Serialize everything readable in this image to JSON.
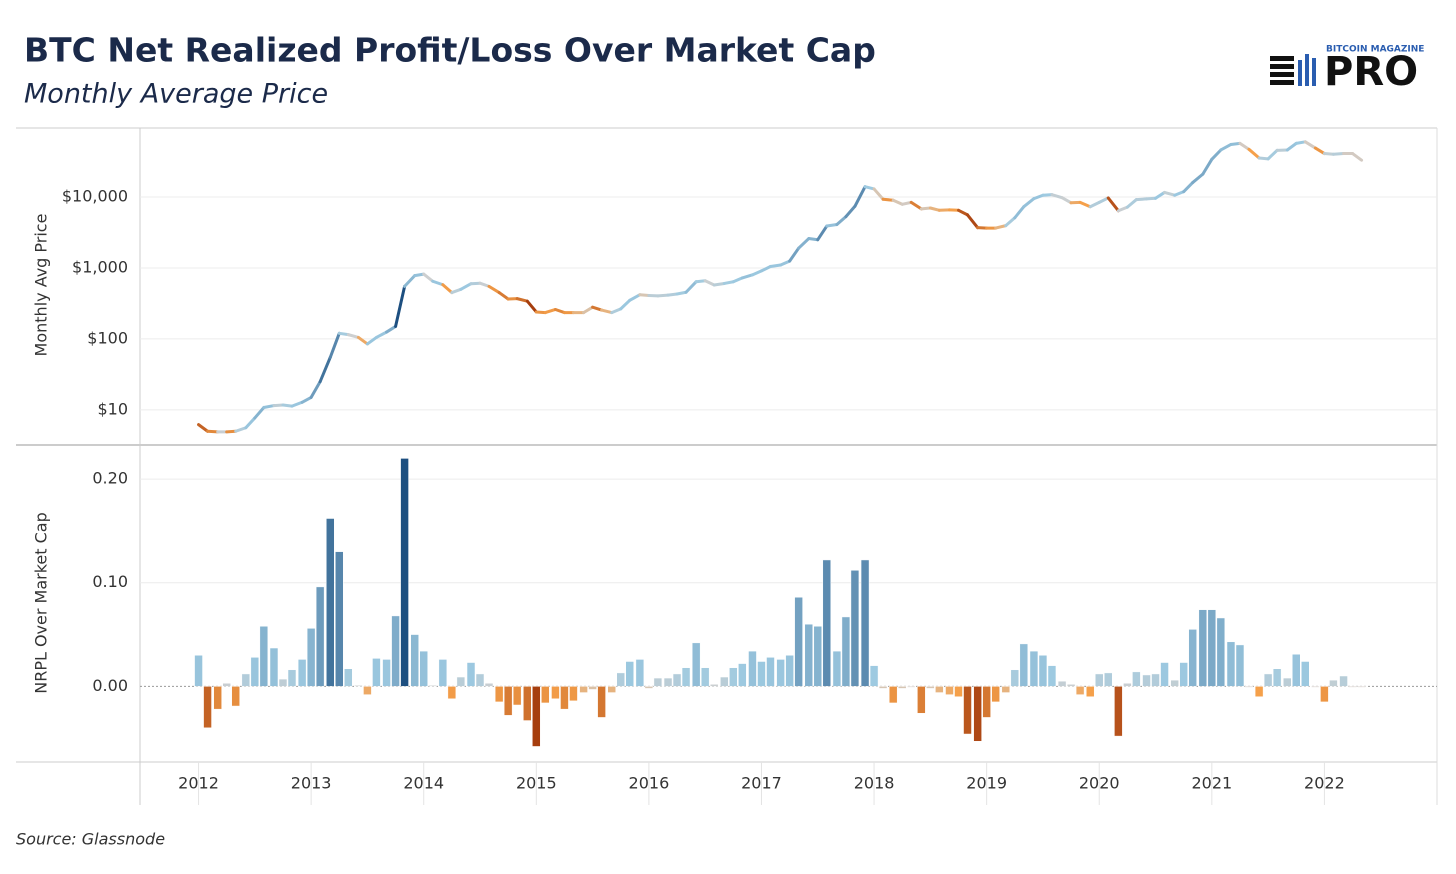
{
  "header": {
    "title": "BTC Net Realized Profit/Loss Over Market Cap",
    "subtitle": "Monthly Average Price",
    "logo_top": "BITCOIN MAGAZINE",
    "logo_main": "PRO"
  },
  "source": "Source: Glassnode",
  "chart_data": [
    {
      "type": "line",
      "y_label": "Monthly Avg Price",
      "log": true,
      "grid": true,
      "xlim": [
        2011.48,
        2023.0
      ],
      "xticks": [
        2012,
        2013,
        2014,
        2015,
        2016,
        2017,
        2018,
        2019,
        2020,
        2021,
        2022
      ],
      "ylim": [
        3.2,
        88000
      ],
      "yticks": [
        {
          "value": 10,
          "label": "$10"
        },
        {
          "value": 100,
          "label": "$100"
        },
        {
          "value": 1000,
          "label": "$1,000"
        },
        {
          "value": 10000,
          "label": "$10,000"
        }
      ],
      "x": [
        2012,
        2012.08,
        2012.17,
        2012.25,
        2012.33,
        2012.42,
        2012.5,
        2012.58,
        2012.67,
        2012.75,
        2012.83,
        2012.92,
        2013,
        2013.08,
        2013.17,
        2013.25,
        2013.33,
        2013.42,
        2013.5,
        2013.58,
        2013.67,
        2013.75,
        2013.83,
        2013.92,
        2014,
        2014.08,
        2014.17,
        2014.25,
        2014.33,
        2014.42,
        2014.5,
        2014.58,
        2014.67,
        2014.75,
        2014.83,
        2014.92,
        2015,
        2015.08,
        2015.17,
        2015.25,
        2015.33,
        2015.42,
        2015.5,
        2015.58,
        2015.67,
        2015.75,
        2015.83,
        2015.92,
        2016,
        2016.08,
        2016.17,
        2016.25,
        2016.33,
        2016.42,
        2016.5,
        2016.58,
        2016.67,
        2016.75,
        2016.83,
        2016.92,
        2017,
        2017.08,
        2017.17,
        2017.25,
        2017.33,
        2017.42,
        2017.5,
        2017.58,
        2017.67,
        2017.75,
        2017.83,
        2017.92,
        2018,
        2018.08,
        2018.17,
        2018.25,
        2018.33,
        2018.42,
        2018.5,
        2018.58,
        2018.67,
        2018.75,
        2018.83,
        2018.92,
        2019,
        2019.08,
        2019.17,
        2019.25,
        2019.33,
        2019.42,
        2019.5,
        2019.58,
        2019.67,
        2019.75,
        2019.83,
        2019.92,
        2020,
        2020.08,
        2020.17,
        2020.25,
        2020.33,
        2020.42,
        2020.5,
        2020.58,
        2020.67,
        2020.75,
        2020.83,
        2020.92,
        2021,
        2021.08,
        2021.17,
        2021.25,
        2021.33,
        2021.42,
        2021.5,
        2021.58,
        2021.67,
        2021.75,
        2021.83,
        2021.92,
        2022,
        2022.08,
        2022.17,
        2022.25,
        2022.33
      ],
      "values": [
        6.2,
        5.0,
        4.9,
        4.9,
        5.0,
        5.6,
        7.7,
        10.8,
        11.5,
        11.7,
        11.3,
        12.8,
        15,
        25,
        55,
        120,
        115,
        105,
        85,
        105,
        125,
        150,
        550,
        780,
        820,
        650,
        580,
        450,
        500,
        600,
        610,
        550,
        450,
        365,
        370,
        340,
        240,
        235,
        260,
        235,
        235,
        235,
        280,
        255,
        235,
        265,
        350,
        420,
        410,
        405,
        415,
        430,
        455,
        640,
        660,
        575,
        605,
        640,
        725,
        800,
        910,
        1050,
        1100,
        1250,
        1900,
        2600,
        2500,
        3900,
        4100,
        5300,
        7400,
        14000,
        13000,
        9300,
        9000,
        7900,
        8400,
        6800,
        7000,
        6500,
        6600,
        6500,
        5600,
        3700,
        3650,
        3650,
        3950,
        5100,
        7300,
        9500,
        10600,
        10800,
        9800,
        8300,
        8400,
        7300,
        8400,
        9700,
        6400,
        7200,
        9200,
        9400,
        9600,
        11600,
        10600,
        11900,
        16000,
        21000,
        34000,
        46000,
        55000,
        57000,
        47000,
        35500,
        34500,
        45500,
        46000,
        57000,
        60000,
        49000,
        41000,
        40000,
        41000,
        41000,
        33000
      ]
    },
    {
      "type": "bar",
      "y_label": "NRPL Over Market Cap",
      "grid": true,
      "xlim": [
        2011.48,
        2023.0
      ],
      "xticks": [
        2012,
        2013,
        2014,
        2015,
        2016,
        2017,
        2018,
        2019,
        2020,
        2021,
        2022
      ],
      "ylim": [
        -0.073,
        0.231
      ],
      "yticks": [
        {
          "value": 0,
          "label": "0.00"
        },
        {
          "value": 0.1,
          "label": "0.10"
        },
        {
          "value": 0.2,
          "label": "0.20"
        }
      ],
      "color_scale": {
        "domain": [
          -0.06,
          -0.01,
          0,
          0.02,
          0.22
        ],
        "range": [
          "#a33a0c",
          "#f5a04a",
          "#cfcfcf",
          "#9ecae1",
          "#1d4f80"
        ]
      },
      "x": [
        2012,
        2012.08,
        2012.17,
        2012.25,
        2012.33,
        2012.42,
        2012.5,
        2012.58,
        2012.67,
        2012.75,
        2012.83,
        2012.92,
        2013,
        2013.08,
        2013.17,
        2013.25,
        2013.33,
        2013.42,
        2013.5,
        2013.58,
        2013.67,
        2013.75,
        2013.83,
        2013.92,
        2014,
        2014.08,
        2014.17,
        2014.25,
        2014.33,
        2014.42,
        2014.5,
        2014.58,
        2014.67,
        2014.75,
        2014.83,
        2014.92,
        2015,
        2015.08,
        2015.17,
        2015.25,
        2015.33,
        2015.42,
        2015.5,
        2015.58,
        2015.67,
        2015.75,
        2015.83,
        2015.92,
        2016,
        2016.08,
        2016.17,
        2016.25,
        2016.33,
        2016.42,
        2016.5,
        2016.58,
        2016.67,
        2016.75,
        2016.83,
        2016.92,
        2017,
        2017.08,
        2017.17,
        2017.25,
        2017.33,
        2017.42,
        2017.5,
        2017.58,
        2017.67,
        2017.75,
        2017.83,
        2017.92,
        2018,
        2018.08,
        2018.17,
        2018.25,
        2018.33,
        2018.42,
        2018.5,
        2018.58,
        2018.67,
        2018.75,
        2018.83,
        2018.92,
        2019,
        2019.08,
        2019.17,
        2019.25,
        2019.33,
        2019.42,
        2019.5,
        2019.58,
        2019.67,
        2019.75,
        2019.83,
        2019.92,
        2020,
        2020.08,
        2020.17,
        2020.25,
        2020.33,
        2020.42,
        2020.5,
        2020.58,
        2020.67,
        2020.75,
        2020.83,
        2020.92,
        2021,
        2021.08,
        2021.17,
        2021.25,
        2021.33,
        2021.42,
        2021.5,
        2021.58,
        2021.67,
        2021.75,
        2021.83,
        2021.92,
        2022,
        2022.08,
        2022.17,
        2022.25,
        2022.33
      ],
      "values": [
        0.03,
        -0.04,
        -0.022,
        0.003,
        -0.019,
        0.012,
        0.028,
        0.058,
        0.037,
        0.007,
        0.016,
        0.026,
        0.056,
        0.096,
        0.162,
        0.13,
        0.017,
        0.001,
        -0.008,
        0.027,
        0.026,
        0.068,
        0.22,
        0.05,
        0.034,
        0.001,
        0.026,
        -0.012,
        0.009,
        0.023,
        0.012,
        0.003,
        -0.015,
        -0.028,
        -0.018,
        -0.033,
        -0.058,
        -0.016,
        -0.012,
        -0.022,
        -0.014,
        -0.006,
        -0.003,
        -0.03,
        -0.006,
        0.013,
        0.024,
        0.026,
        -0.002,
        0.008,
        0.008,
        0.012,
        0.018,
        0.042,
        0.018,
        0.002,
        0.009,
        0.018,
        0.022,
        0.034,
        0.024,
        0.028,
        0.026,
        0.03,
        0.086,
        0.06,
        0.058,
        0.122,
        0.034,
        0.067,
        0.112,
        0.122,
        0.02,
        -0.002,
        -0.016,
        -0.002,
        -0.001,
        -0.026,
        -0.002,
        -0.006,
        -0.008,
        -0.01,
        -0.046,
        -0.053,
        -0.03,
        -0.015,
        -0.006,
        0.016,
        0.041,
        0.034,
        0.03,
        0.02,
        0.005,
        0.002,
        -0.008,
        -0.01,
        0.012,
        0.013,
        -0.048,
        0.003,
        0.014,
        0.011,
        0.012,
        0.023,
        0.006,
        0.023,
        0.055,
        0.074,
        0.074,
        0.066,
        0.043,
        0.04,
        -0.001,
        -0.01,
        0.012,
        0.017,
        0.008,
        0.031,
        0.024,
        -0.001,
        -0.015,
        0.006,
        0.01,
        -0.001,
        -0.001
      ]
    }
  ]
}
